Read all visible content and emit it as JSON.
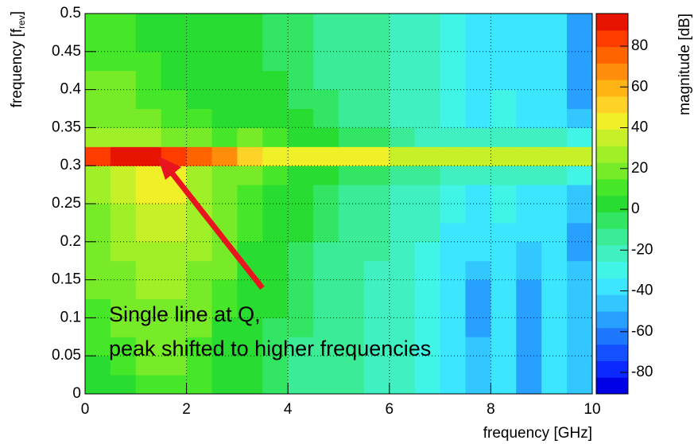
{
  "chart_data": {
    "type": "heatmap",
    "xlabel": "frequency [GHz]",
    "ylabel": {
      "text": "frequency [f",
      "sub": "rev",
      "end": "]"
    },
    "zlabel": "magnitude [dB]",
    "annotation": [
      "Single line at Q,",
      "peak shifted to higher frequencies"
    ],
    "annotation_color": "#e8141e",
    "xlim": [
      0,
      10
    ],
    "xticks": [
      0,
      2,
      4,
      6,
      8,
      10
    ],
    "ylim": [
      0,
      0.5
    ],
    "yticks": [
      0,
      0.05,
      0.1,
      0.15,
      0.2,
      0.25,
      0.3,
      0.35,
      0.4,
      0.45,
      0.5
    ],
    "zlim": [
      -90.5,
      96
    ],
    "zticks": [
      -80,
      -60,
      -40,
      -20,
      0,
      20,
      40,
      60,
      80
    ],
    "grid": true,
    "palette": [
      "#0000e6",
      "#0a28ff",
      "#1450ff",
      "#1e78ff",
      "#28a0ff",
      "#32c8ff",
      "#3ce6ff",
      "#40f5e6",
      "#40f0c0",
      "#3ceb96",
      "#32e664",
      "#28dc32",
      "#46e628",
      "#78eb28",
      "#a0f028",
      "#c8f028",
      "#f0f028",
      "#ffd228",
      "#ffb414",
      "#ff8c0a",
      "#ff6400",
      "#ff3c00",
      "#e61400"
    ],
    "xbins": [
      0,
      0.5,
      1,
      1.5,
      2,
      2.5,
      3,
      3.5,
      4,
      4.5,
      5,
      5.5,
      6,
      6.5,
      7,
      7.5,
      8,
      8.5,
      9,
      9.5,
      10
    ],
    "ybins": [
      0,
      0.025,
      0.05,
      0.075,
      0.1,
      0.125,
      0.15,
      0.175,
      0.2,
      0.225,
      0.25,
      0.275,
      0.3,
      0.325,
      0.35,
      0.375,
      0.4,
      0.425,
      0.45,
      0.475,
      0.5
    ],
    "z": [
      [
        5,
        5,
        10,
        10,
        10,
        5,
        0,
        -5,
        -10,
        -15,
        -15,
        -20,
        -25,
        -30,
        -40,
        -45,
        -35,
        -50,
        -40,
        -45
      ],
      [
        5,
        10,
        15,
        15,
        10,
        5,
        0,
        -5,
        -10,
        -10,
        -15,
        -20,
        -25,
        -30,
        -40,
        -45,
        -35,
        -50,
        -40,
        -45
      ],
      [
        10,
        10,
        15,
        15,
        10,
        5,
        0,
        -5,
        -10,
        -10,
        -15,
        -20,
        -25,
        -30,
        -40,
        -45,
        -35,
        -50,
        -40,
        -45
      ],
      [
        10,
        15,
        20,
        20,
        15,
        5,
        0,
        -5,
        -5,
        -10,
        -15,
        -20,
        -25,
        -30,
        -40,
        -50,
        -35,
        -55,
        -40,
        -45
      ],
      [
        10,
        15,
        20,
        20,
        15,
        10,
        5,
        0,
        -5,
        -10,
        -15,
        -20,
        -25,
        -30,
        -40,
        -50,
        -35,
        -55,
        -40,
        -45
      ],
      [
        15,
        20,
        25,
        25,
        20,
        10,
        5,
        0,
        -5,
        -10,
        -15,
        -20,
        -25,
        -30,
        -35,
        -50,
        -35,
        -50,
        -40,
        -45
      ],
      [
        15,
        20,
        25,
        25,
        20,
        15,
        5,
        0,
        -5,
        -10,
        -15,
        -20,
        -25,
        -30,
        -35,
        -45,
        -35,
        -45,
        -40,
        -45
      ],
      [
        15,
        25,
        30,
        30,
        25,
        15,
        5,
        0,
        -5,
        -10,
        -15,
        -15,
        -25,
        -30,
        -35,
        -40,
        -35,
        -45,
        -40,
        -50
      ],
      [
        20,
        30,
        35,
        35,
        25,
        15,
        10,
        5,
        0,
        -5,
        -10,
        -15,
        -20,
        -25,
        -35,
        -40,
        -35,
        -40,
        -40,
        -50
      ],
      [
        20,
        30,
        35,
        35,
        25,
        20,
        10,
        5,
        0,
        -5,
        -10,
        -15,
        -20,
        -25,
        -30,
        -35,
        -30,
        -40,
        -35,
        -45
      ],
      [
        25,
        35,
        40,
        40,
        30,
        20,
        10,
        5,
        0,
        -5,
        -10,
        -10,
        -20,
        -25,
        -30,
        -35,
        -30,
        -40,
        -35,
        -45
      ],
      [
        30,
        35,
        40,
        40,
        30,
        20,
        15,
        10,
        5,
        0,
        -5,
        -5,
        -10,
        -15,
        -20,
        -25,
        -20,
        -25,
        -25,
        -30
      ],
      [
        80,
        90,
        90,
        85,
        75,
        65,
        55,
        45,
        40,
        40,
        40,
        40,
        35,
        35,
        35,
        35,
        35,
        35,
        35,
        35
      ],
      [
        25,
        30,
        25,
        20,
        15,
        10,
        15,
        10,
        5,
        0,
        -5,
        -5,
        -15,
        -20,
        -20,
        -25,
        -25,
        -25,
        -25,
        -30
      ],
      [
        20,
        20,
        15,
        10,
        10,
        5,
        5,
        5,
        0,
        -5,
        -10,
        -10,
        -20,
        -25,
        -30,
        -35,
        -30,
        -35,
        -35,
        -45
      ],
      [
        15,
        15,
        10,
        10,
        5,
        5,
        5,
        0,
        -5,
        -5,
        -10,
        -15,
        -20,
        -25,
        -30,
        -35,
        -30,
        -40,
        -35,
        -50
      ],
      [
        15,
        15,
        10,
        5,
        5,
        5,
        0,
        0,
        -5,
        -10,
        -10,
        -15,
        -20,
        -25,
        -30,
        -35,
        -35,
        -40,
        -40,
        -50
      ],
      [
        10,
        10,
        10,
        5,
        5,
        0,
        0,
        -5,
        -5,
        -10,
        -10,
        -15,
        -20,
        -25,
        -30,
        -35,
        -35,
        -40,
        -40,
        -50
      ],
      [
        10,
        10,
        5,
        5,
        5,
        0,
        0,
        -5,
        -5,
        -10,
        -15,
        -15,
        -20,
        -25,
        -30,
        -35,
        -35,
        -40,
        -40,
        -50
      ],
      [
        10,
        10,
        5,
        5,
        5,
        0,
        0,
        -5,
        -5,
        -10,
        -15,
        -15,
        -20,
        -25,
        -30,
        -35,
        -35,
        -40,
        -40,
        -50
      ]
    ]
  }
}
